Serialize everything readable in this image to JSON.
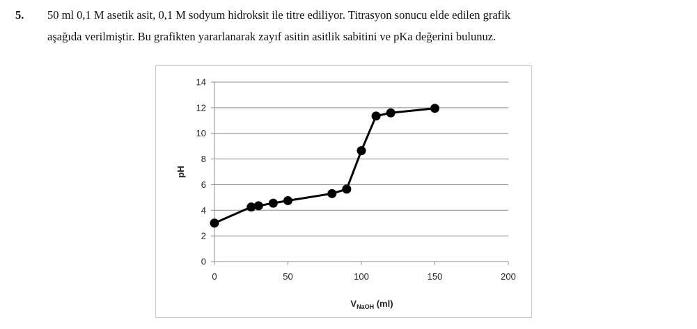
{
  "question": {
    "number": "5.",
    "line1": "50 ml 0,1 M asetik asit, 0,1 M sodyum hidroksit ile titre ediliyor. Titrasyon sonucu elde edilen grafik",
    "line2": "aşağıda verilmiştir. Bu grafikten yararlanarak zayıf asitin asitlik sabitini ve pKa değerini bulunuz."
  },
  "chart_data": {
    "type": "line",
    "title": "",
    "xlabel_main": "V",
    "xlabel_sub": "NaOH",
    "xlabel_suffix": " (ml)",
    "ylabel": "pH",
    "xlim": [
      0,
      200
    ],
    "ylim": [
      0,
      14
    ],
    "xticks": [
      0,
      50,
      100,
      150,
      200
    ],
    "yticks": [
      0,
      2,
      4,
      6,
      8,
      10,
      12,
      14
    ],
    "grid": "horizontal",
    "legend": "none",
    "series": [
      {
        "x": [
          0,
          25,
          30,
          40,
          50,
          80,
          90,
          100,
          110,
          120,
          150
        ],
        "y": [
          3.0,
          4.25,
          4.35,
          4.55,
          4.75,
          5.3,
          5.65,
          8.65,
          11.35,
          11.6,
          11.95
        ]
      }
    ],
    "line_color": "#000000",
    "grid_color": "#8c8c8c"
  }
}
